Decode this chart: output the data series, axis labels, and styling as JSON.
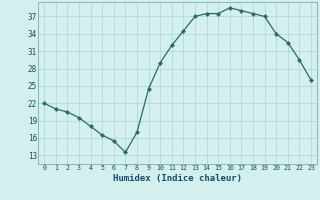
{
  "x": [
    0,
    1,
    2,
    3,
    4,
    5,
    6,
    7,
    8,
    9,
    10,
    11,
    12,
    13,
    14,
    15,
    16,
    17,
    18,
    19,
    20,
    21,
    22,
    23
  ],
  "y": [
    22,
    21,
    20.5,
    19.5,
    18,
    16.5,
    15.5,
    13.5,
    17,
    24.5,
    29,
    32,
    34.5,
    37,
    37.5,
    37.5,
    38.5,
    38,
    37.5,
    37,
    34,
    32.5,
    29.5,
    26
  ],
  "xlabel": "Humidex (Indice chaleur)",
  "xlim": [
    -0.5,
    23.5
  ],
  "ylim": [
    11.5,
    39.5
  ],
  "yticks": [
    13,
    16,
    19,
    22,
    25,
    28,
    31,
    34,
    37
  ],
  "xticks": [
    0,
    1,
    2,
    3,
    4,
    5,
    6,
    7,
    8,
    9,
    10,
    11,
    12,
    13,
    14,
    15,
    16,
    17,
    18,
    19,
    20,
    21,
    22,
    23
  ],
  "line_color": "#2e6b5e",
  "marker": "D",
  "marker_size": 2.0,
  "bg_color": "#d4f0ee",
  "grid_color": "#aed4ce",
  "label_color": "#1a4a6b",
  "tick_label_color": "#1a4a5e"
}
